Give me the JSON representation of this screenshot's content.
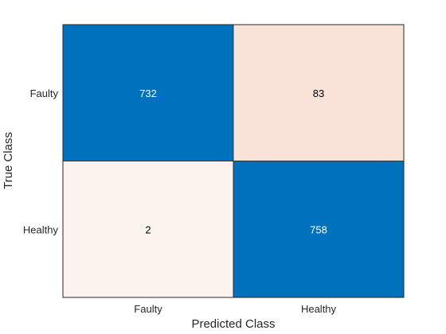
{
  "chart_data": {
    "type": "heatmap",
    "title": "",
    "xlabel": "Predicted Class",
    "ylabel": "True Class",
    "x_categories": [
      "Faulty",
      "Healthy"
    ],
    "y_categories": [
      "Faulty",
      "Healthy"
    ],
    "values": [
      [
        732,
        83
      ],
      [
        2,
        758
      ]
    ],
    "colors": {
      "diagonal": "#0072bd",
      "off_diagonal_high": "#f9e3d9",
      "off_diagonal_low": "#fdf3ef",
      "text_on_dark": "#ffffff",
      "text_on_light": "#000000",
      "axis": "#262626"
    },
    "grid": true,
    "legend": "none"
  }
}
